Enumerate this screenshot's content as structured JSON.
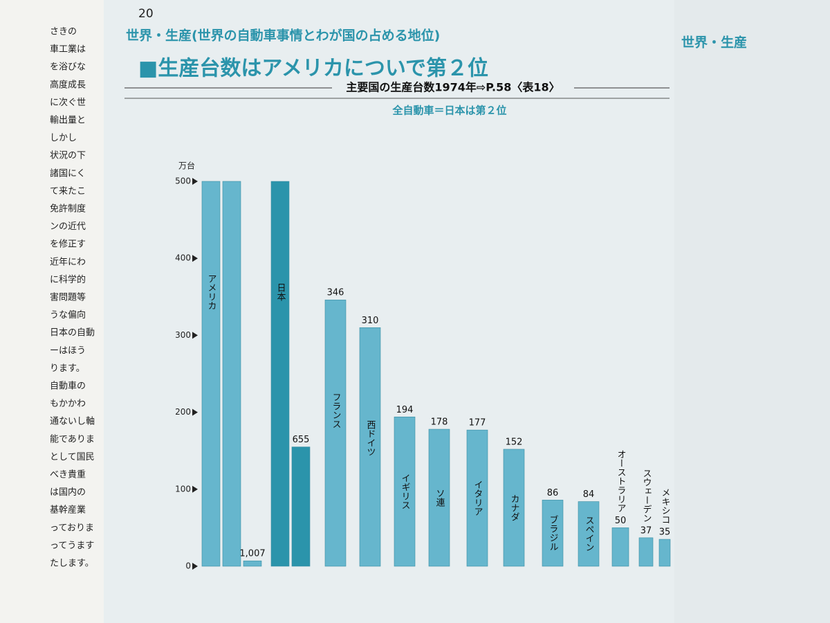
{
  "page_number": "20",
  "section": "世界・生産(世界の自動車事情とわが国の占める地位)",
  "headline": "■生産台数はアメリカについで第２位",
  "subheading": "主要国の生産台数1974年⇨P.58〈表18〉",
  "side_text": [
    "さきの",
    "車工業は",
    "を浴びな",
    "高度成長",
    "に次ぐ世",
    "輸出量と",
    "しかし",
    "状況の下",
    "諸国にく",
    "て来たこ",
    "免許制度",
    "ンの近代",
    "を修正す",
    "近年にわ",
    "に科学的",
    "害問題等",
    "うな偏向",
    "日本の自動",
    "ーはほう",
    "ります。",
    "自動車の",
    "もかかわ",
    "通ないし軸",
    "能でありま",
    "として国民",
    "べき貴重",
    "は国内の",
    "基幹産業",
    "っておりま",
    "ってうます",
    "たします。"
  ],
  "right_page_section": "世界・生産",
  "chart_data": {
    "type": "bar",
    "title": "全自動車＝日本は第２位",
    "y_unit": "万台",
    "categories": [
      "アメリカ",
      "日本",
      "フランス",
      "西ドイツ",
      "イギリス",
      "ソ連",
      "イタリア",
      "カナダ",
      "ブラジル",
      "スペイン",
      "オーストラリア",
      "スウェーデン",
      "メキシコ"
    ],
    "values": [
      1007,
      655,
      346,
      310,
      194,
      178,
      177,
      152,
      86,
      84,
      50,
      37,
      35
    ],
    "value_labels": [
      "1,007",
      "655",
      "346",
      "310",
      "194",
      "178",
      "177",
      "152",
      "86",
      "84",
      "50",
      "37",
      "35"
    ],
    "colors": [
      "#66b6cd",
      "#2b94ab",
      "#66b6cd",
      "#66b6cd",
      "#66b6cd",
      "#66b6cd",
      "#66b6cd",
      "#66b6cd",
      "#66b6cd",
      "#66b6cd",
      "#66b6cd",
      "#66b6cd",
      "#66b6cd"
    ],
    "ylim": [
      0,
      500
    ],
    "yticks": [
      0,
      100,
      200,
      300,
      400,
      500
    ]
  }
}
